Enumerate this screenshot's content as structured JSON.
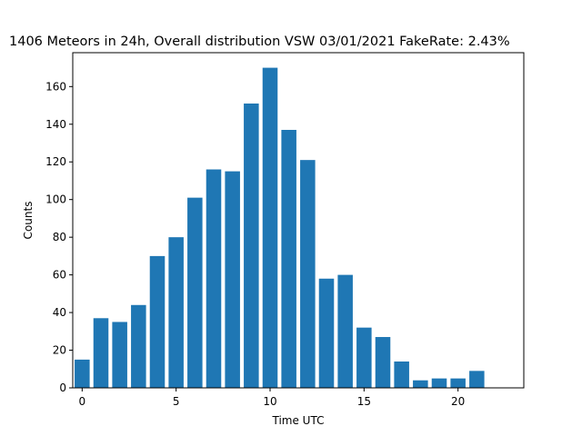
{
  "chart_data": {
    "type": "bar",
    "title": "1406 Meteors in 24h, Overall distribution VSW 03/01/2021 FakeRate: 2.43%",
    "xlabel": "Time UTC",
    "ylabel": "Counts",
    "x": [
      0,
      1,
      2,
      3,
      4,
      5,
      6,
      7,
      8,
      9,
      10,
      11,
      12,
      13,
      14,
      15,
      16,
      17,
      18,
      19,
      20,
      21,
      22,
      23
    ],
    "values": [
      15,
      37,
      35,
      44,
      70,
      80,
      101,
      116,
      115,
      151,
      170,
      137,
      121,
      58,
      60,
      32,
      27,
      14,
      4,
      5,
      5,
      9,
      0,
      0
    ],
    "xlim": [
      -0.5,
      23.5
    ],
    "ylim": [
      0,
      178
    ],
    "xticks": [
      0,
      5,
      10,
      15,
      20
    ],
    "yticks": [
      0,
      20,
      40,
      60,
      80,
      100,
      120,
      140,
      160
    ],
    "bar_width": 0.8,
    "grid": false,
    "color": "#1f77b4"
  }
}
